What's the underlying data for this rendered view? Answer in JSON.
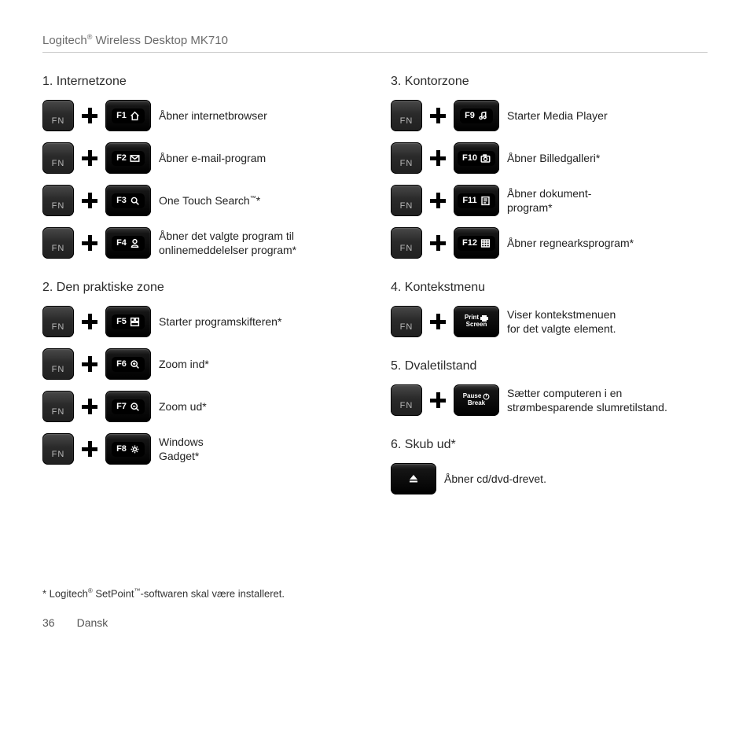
{
  "header": {
    "brand": "Logitech",
    "reg": "®",
    "product": " Wireless Desktop MK710"
  },
  "fn_label": "FN",
  "left": [
    {
      "title": "1. Internetzone",
      "items": [
        {
          "num": "F1",
          "icon": "home",
          "desc": "Åbner internetbrowser"
        },
        {
          "num": "F2",
          "icon": "mail",
          "desc": "Åbner e-mail-program"
        },
        {
          "num": "F3",
          "icon": "search",
          "desc": "One Touch Search<sup>™</sup>*"
        },
        {
          "num": "F4",
          "icon": "person",
          "desc": "Åbner det valgte program til onlinemeddelelser program*"
        }
      ]
    },
    {
      "title": "2. Den praktiske zone",
      "items": [
        {
          "num": "F5",
          "icon": "grid",
          "desc": "Starter programskifteren*"
        },
        {
          "num": "F6",
          "icon": "zoomin",
          "desc": "Zoom ind*"
        },
        {
          "num": "F7",
          "icon": "zoomout",
          "desc": "Zoom ud*"
        },
        {
          "num": "F8",
          "icon": "gear",
          "desc": "Windows<br>Gadget*"
        }
      ]
    }
  ],
  "right": [
    {
      "title": "3. Kontorzone",
      "items": [
        {
          "num": "F9",
          "icon": "music",
          "desc": "Starter Media Player"
        },
        {
          "num": "F10",
          "icon": "camera",
          "desc": "Åbner Billedgalleri*"
        },
        {
          "num": "F11",
          "icon": "doc",
          "desc": "Åbner dokument-<br>program*"
        },
        {
          "num": "F12",
          "icon": "sheet",
          "desc": "Åbner regnearksprogram*"
        }
      ]
    },
    {
      "title": "4. Kontekstmenu",
      "items": [
        {
          "special": "print",
          "l1": "Print",
          "l2": "Screen",
          "desc": "Viser kontekstmenuen<br>for det valgte element."
        }
      ]
    },
    {
      "title": "5. Dvaletilstand",
      "items": [
        {
          "special": "pause",
          "l1": "Pause",
          "l2": "Break",
          "desc": "Sætter computeren i en<br>strømbesparende slumretilstand."
        }
      ]
    },
    {
      "title": "6. Skub ud*",
      "items": [
        {
          "eject": true,
          "desc": "Åbner cd/dvd-drevet."
        }
      ]
    }
  ],
  "footnote": "* Logitech<sup>®</sup> SetPoint<sup>™</sup>-softwaren skal være installeret.",
  "page": {
    "num": "36",
    "lang": "Dansk"
  }
}
